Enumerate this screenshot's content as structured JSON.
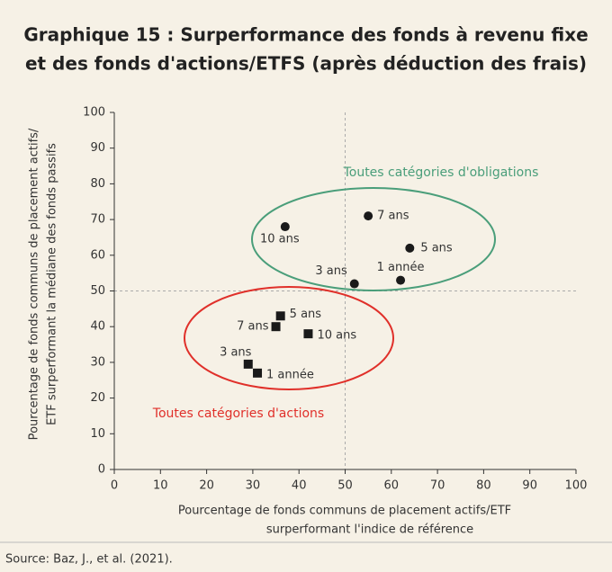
{
  "chart_data": {
    "type": "scatter",
    "title": [
      "Graphique 15 : Surperformance des fonds à revenu fixe",
      "et des fonds d'actions/ETFS (après déduction des frais)"
    ],
    "xlabel": [
      "Pourcentage de fonds communs de placement actifs/ETF",
      "surperformant l'indice de référence"
    ],
    "ylabel": [
      "Pourcentage de fonds communs de placement actifs/",
      "ETF surperformant la médiane des fonds passifs"
    ],
    "xlim": [
      0,
      100
    ],
    "ylim": [
      0,
      100
    ],
    "xticks": [
      0,
      10,
      20,
      30,
      40,
      50,
      60,
      70,
      80,
      90,
      100
    ],
    "yticks": [
      0,
      10,
      20,
      30,
      40,
      50,
      60,
      70,
      80,
      90,
      100
    ],
    "reference_lines": {
      "x": 50,
      "y": 50
    },
    "series": [
      {
        "name": "Toutes catégories d'obligations",
        "color": "#1a1a1a",
        "group_color": "#4a9e7a",
        "marker": "circle",
        "labels": [
          "10 ans",
          "7 ans",
          "5 ans",
          "3 ans",
          "1 année"
        ],
        "x": [
          37,
          55,
          64,
          52,
          62
        ],
        "values": [
          68,
          71,
          62,
          52,
          53
        ]
      },
      {
        "name": "Toutes catégories d'actions",
        "color": "#1a1a1a",
        "group_color": "#e0302a",
        "marker": "square",
        "labels": [
          "5 ans",
          "7 ans",
          "10 ans",
          "3 ans",
          "1 année"
        ],
        "x": [
          36,
          35,
          42,
          29,
          31
        ],
        "values": [
          43,
          40,
          38,
          29.5,
          27
        ]
      }
    ],
    "source": "Source:  Baz, J., et al. (2021)."
  }
}
